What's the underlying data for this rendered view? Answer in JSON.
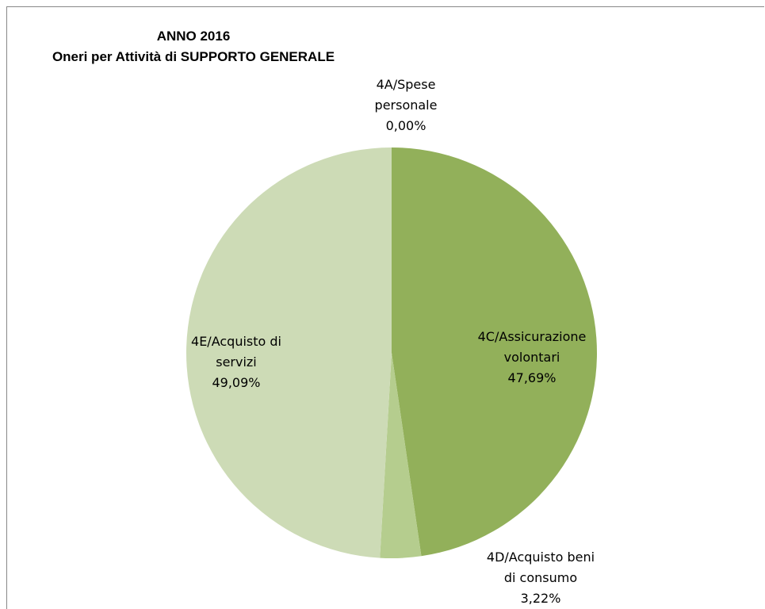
{
  "chart_data": {
    "type": "pie",
    "title": [
      "ANNO 2016",
      "Oneri per Attività di SUPPORTO GENERALE"
    ],
    "start_angle_deg": 0,
    "direction": "clockwise",
    "legend": "none",
    "slices": [
      {
        "name": "4A/Spese personale",
        "value": 0.0,
        "label_lines": [
          "4A/Spese",
          "personale",
          "0,00%"
        ],
        "color": "#4F6228"
      },
      {
        "name": "4C/Assicurazione volontari",
        "value": 47.69,
        "label_lines": [
          "4C/Assicurazione",
          "volontari",
          "47,69%"
        ],
        "color": "#92B05A"
      },
      {
        "name": "4D/Acquisto beni di consumo",
        "value": 3.22,
        "label_lines": [
          "4D/Acquisto beni",
          "di consumo",
          "3,22%"
        ],
        "color": "#B5CD8E"
      },
      {
        "name": "4E/Acquisto di servizi",
        "value": 49.09,
        "label_lines": [
          "4E/Acquisto di",
          "servizi",
          "49,09%"
        ],
        "color": "#CDDBB6"
      }
    ]
  }
}
